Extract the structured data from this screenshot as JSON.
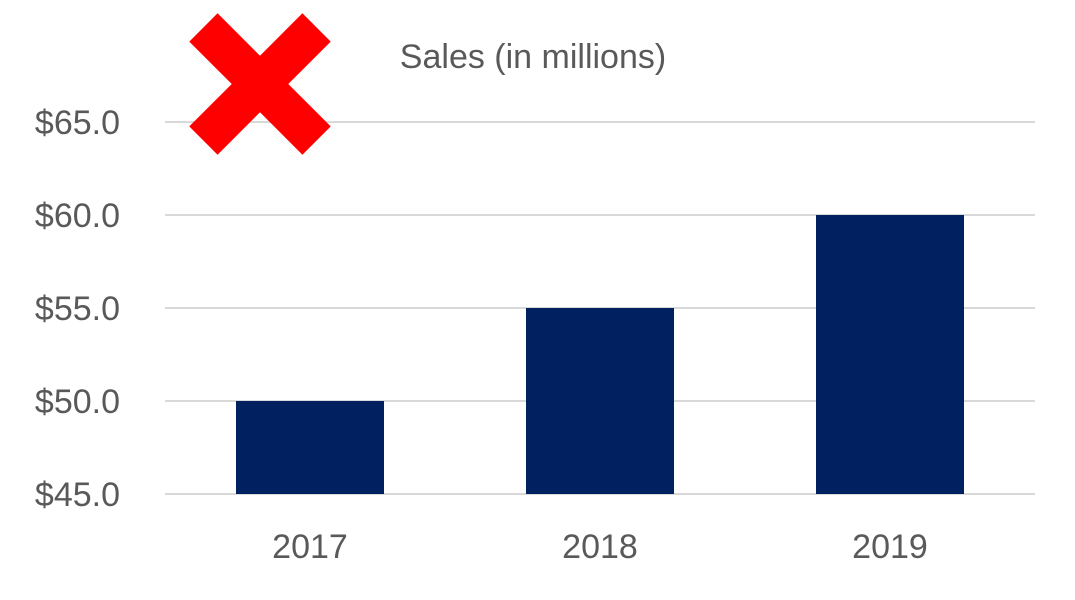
{
  "chart_data": {
    "type": "bar",
    "title": "Sales (in millions)",
    "xlabel": "",
    "ylabel": "",
    "categories": [
      "2017",
      "2018",
      "2019"
    ],
    "values": [
      50.0,
      55.0,
      60.0
    ],
    "ylim": [
      45.0,
      65.0
    ],
    "y_ticks": [
      45.0,
      50.0,
      55.0,
      60.0,
      65.0
    ],
    "y_tick_labels": [
      "$45.0",
      "$50.0",
      "$55.0",
      "$60.0",
      "$65.0"
    ],
    "grid": true,
    "legend": "none"
  },
  "colors": {
    "bar": "#002060",
    "grid": "#d9d9d9",
    "text": "#595959",
    "cross_mark": "#ff0000"
  },
  "overlay": {
    "icon": "red-x-icon"
  }
}
